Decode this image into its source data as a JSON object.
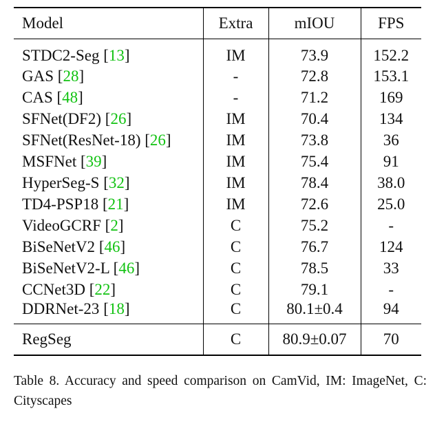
{
  "table": {
    "headers": [
      "Model",
      "Extra",
      "mIOU",
      "FPS"
    ],
    "rows": [
      {
        "model": "STDC2-Seg",
        "cite": "13",
        "extra": "IM",
        "miou": "73.9",
        "fps": "152.2"
      },
      {
        "model": "GAS",
        "cite": "28",
        "extra": "-",
        "miou": "72.8",
        "fps": "153.1"
      },
      {
        "model": "CAS",
        "cite": "48",
        "extra": "-",
        "miou": "71.2",
        "fps": "169"
      },
      {
        "model": "SFNet(DF2)",
        "cite": "26",
        "extra": "IM",
        "miou": "70.4",
        "fps": "134"
      },
      {
        "model": "SFNet(ResNet-18)",
        "cite": "26",
        "extra": "IM",
        "miou": "73.8",
        "fps": "36"
      },
      {
        "model": "MSFNet",
        "cite": "39",
        "extra": "IM",
        "miou": "75.4",
        "fps": "91"
      },
      {
        "model": "HyperSeg-S",
        "cite": "32",
        "extra": "IM",
        "miou": "78.4",
        "fps": "38.0"
      },
      {
        "model": "TD4-PSP18",
        "cite": "21",
        "extra": "IM",
        "miou": "72.6",
        "fps": "25.0"
      },
      {
        "model": "VideoGCRF",
        "cite": "2",
        "extra": "C",
        "miou": "75.2",
        "fps": "-"
      },
      {
        "model": "BiSeNetV2",
        "cite": "46",
        "extra": "C",
        "miou": "76.7",
        "fps": "124"
      },
      {
        "model": "BiSeNetV2-L",
        "cite": "46",
        "extra": "C",
        "miou": "78.5",
        "fps": "33"
      },
      {
        "model": "CCNet3D",
        "cite": "22",
        "extra": "C",
        "miou": "79.1",
        "fps": "-"
      },
      {
        "model": "DDRNet-23",
        "cite": "18",
        "extra": "C",
        "miou": "80.1±0.4",
        "fps": "94"
      }
    ],
    "ours": {
      "model": "RegSeg",
      "extra": "C",
      "miou": "80.9±0.07",
      "fps": "70"
    }
  },
  "caption": "Table 8. Accuracy and speed comparison on CamVid, IM: ImageNet, C: Cityscapes",
  "colors": {
    "citation": "#11c211",
    "text": "#111111"
  }
}
